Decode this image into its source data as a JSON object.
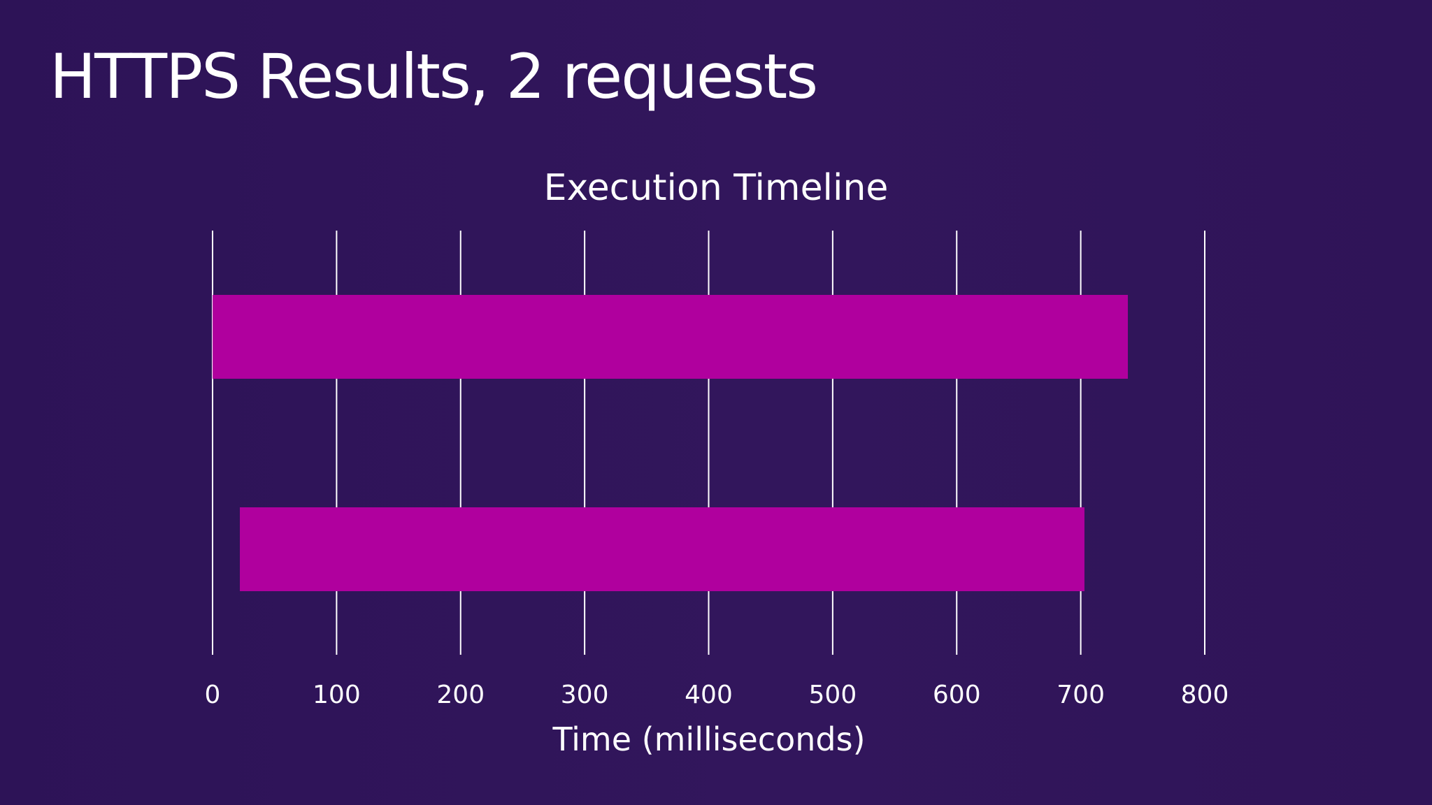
{
  "slide": {
    "title": "HTTPS Results, 2 requests"
  },
  "colors": {
    "background": "#30145a",
    "bar": "#b0009e",
    "gridline": "#ffffff",
    "text": "#ffffff"
  },
  "chart_data": {
    "type": "bar",
    "orientation": "horizontal",
    "title": "Execution Timeline",
    "xlabel": "Time (milliseconds)",
    "ylabel": "",
    "xlim": [
      0,
      800
    ],
    "xticks": [
      0,
      100,
      200,
      300,
      400,
      500,
      600,
      700,
      800
    ],
    "grid": true,
    "legend": "none",
    "bars": [
      {
        "start": 0,
        "end": 738
      },
      {
        "start": 22,
        "end": 703
      }
    ]
  }
}
